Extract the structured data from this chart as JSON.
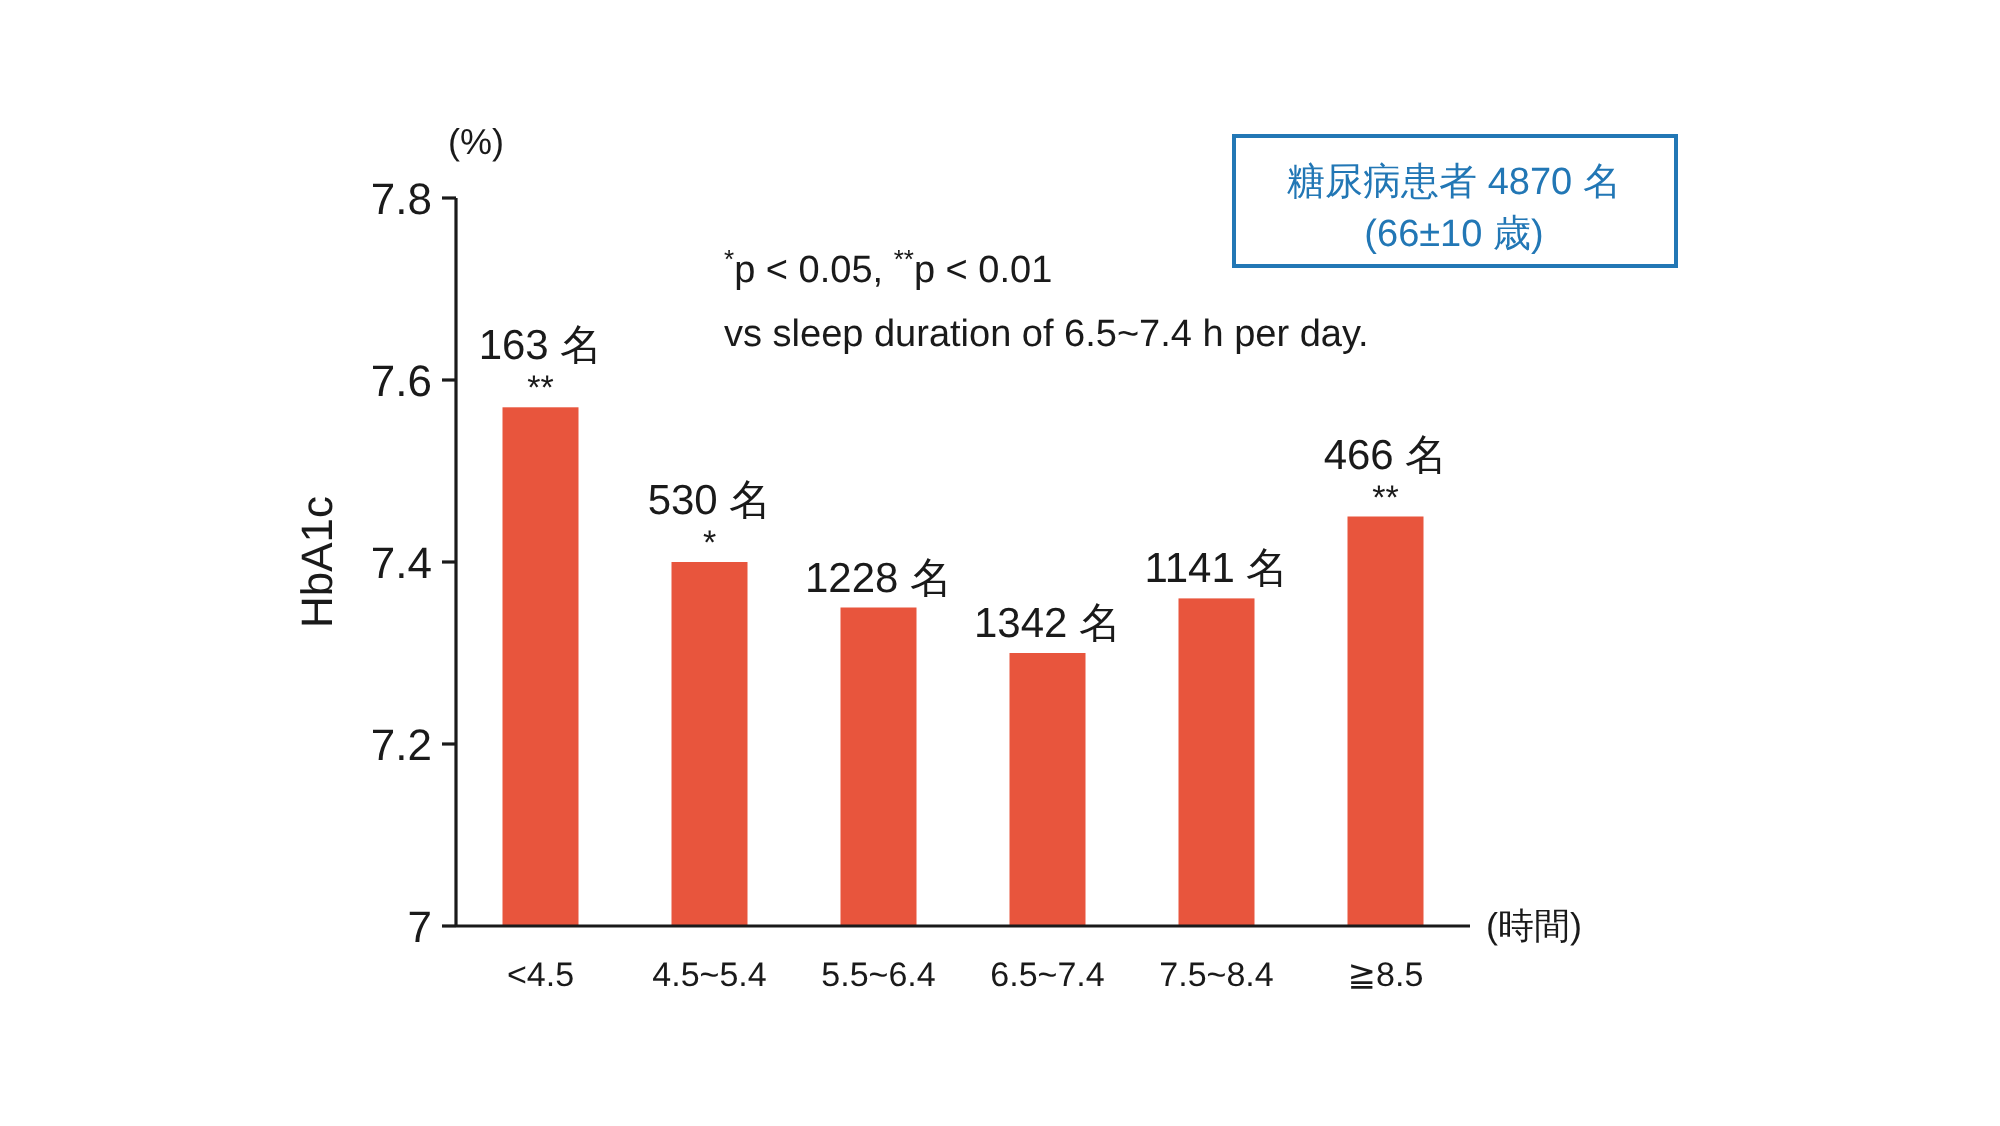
{
  "chart_data": {
    "type": "bar",
    "ylabel": "HbA1c",
    "xlabel": "(時間)",
    "categories": [
      "<4.5",
      "4.5~5.4",
      "5.5~6.4",
      "6.5~7.4",
      "7.5~8.4",
      "≧8.5"
    ],
    "values": [
      7.57,
      7.4,
      7.35,
      7.3,
      7.36,
      7.45
    ],
    "color": "#e8553d",
    "ylim": [
      7,
      7.8
    ],
    "yticks": [
      7,
      7.2,
      7.4,
      7.6,
      7.8
    ],
    "annotations": [
      "(%)",
      "$^{*}$p < 0.05, $^{**}$p < 0.01",
      "vs sleep duration of 6.5~7.4 h per day.",
      "糖尿病患者 4870 名",
      "(66±10 歳)",
      {
        "text": "163 名",
        "x": "<4.5",
        "y": 7.57
      },
      {
        "text": "**",
        "x": "<4.5",
        "y": 7.57
      },
      {
        "text": "530 名",
        "x": "4.5~5.4",
        "y": 7.4
      },
      {
        "text": "*",
        "x": "4.5~5.4",
        "y": 7.4
      },
      {
        "text": "1228 名",
        "x": "5.5~6.4",
        "y": 7.35
      },
      {
        "text": "1342 名",
        "x": "6.5~7.4",
        "y": 7.3
      },
      {
        "text": "1141 名",
        "x": "7.5~8.4",
        "y": 7.36
      },
      {
        "text": "466 名",
        "x": "≧8.5",
        "y": 7.45
      },
      {
        "text": "**",
        "x": "≧8.5",
        "y": 7.45
      }
    ]
  }
}
